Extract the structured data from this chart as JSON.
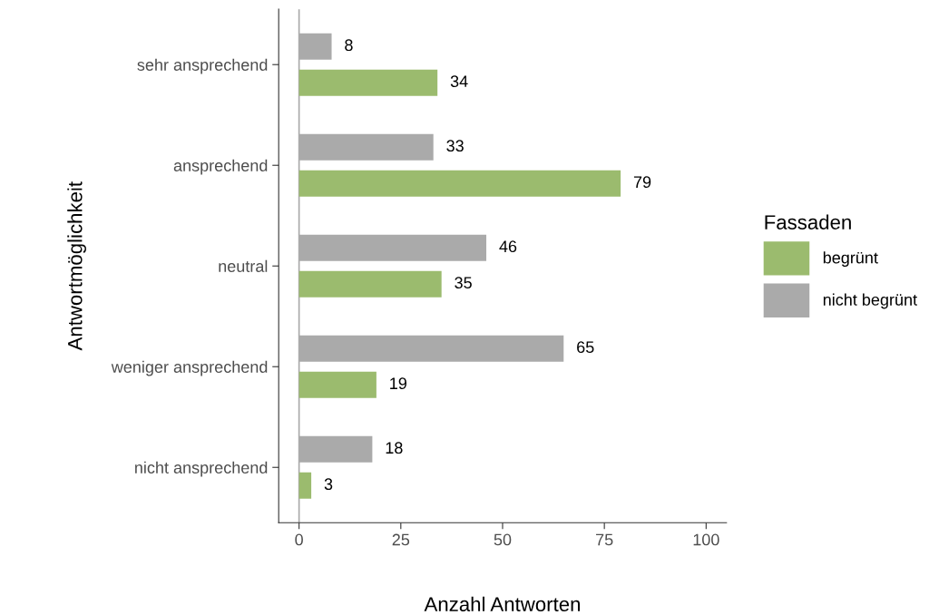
{
  "chart_data": {
    "type": "bar",
    "orientation": "horizontal",
    "xlabel": "Anzahl Antworten",
    "ylabel": "Antwortmöglichkeit",
    "legend_title": "Fassaden",
    "legend": "right",
    "categories": [
      "sehr ansprechend",
      "ansprechend",
      "neutral",
      "weniger ansprechend",
      "nicht ansprechend"
    ],
    "series": [
      {
        "name": "begrünt",
        "color": "#9bbb6e",
        "values": [
          34,
          79,
          35,
          19,
          3
        ]
      },
      {
        "name": "nicht begrünt",
        "color": "#aaaaaa",
        "values": [
          8,
          33,
          46,
          65,
          18
        ]
      }
    ],
    "xlim": [
      -5,
      105
    ],
    "xticks": [
      0,
      25,
      50,
      75,
      100
    ],
    "data_labels": true,
    "grid": false,
    "ref_lines": [
      {
        "axis": "x",
        "value": 0,
        "color": "#aaaaaa"
      }
    ]
  }
}
